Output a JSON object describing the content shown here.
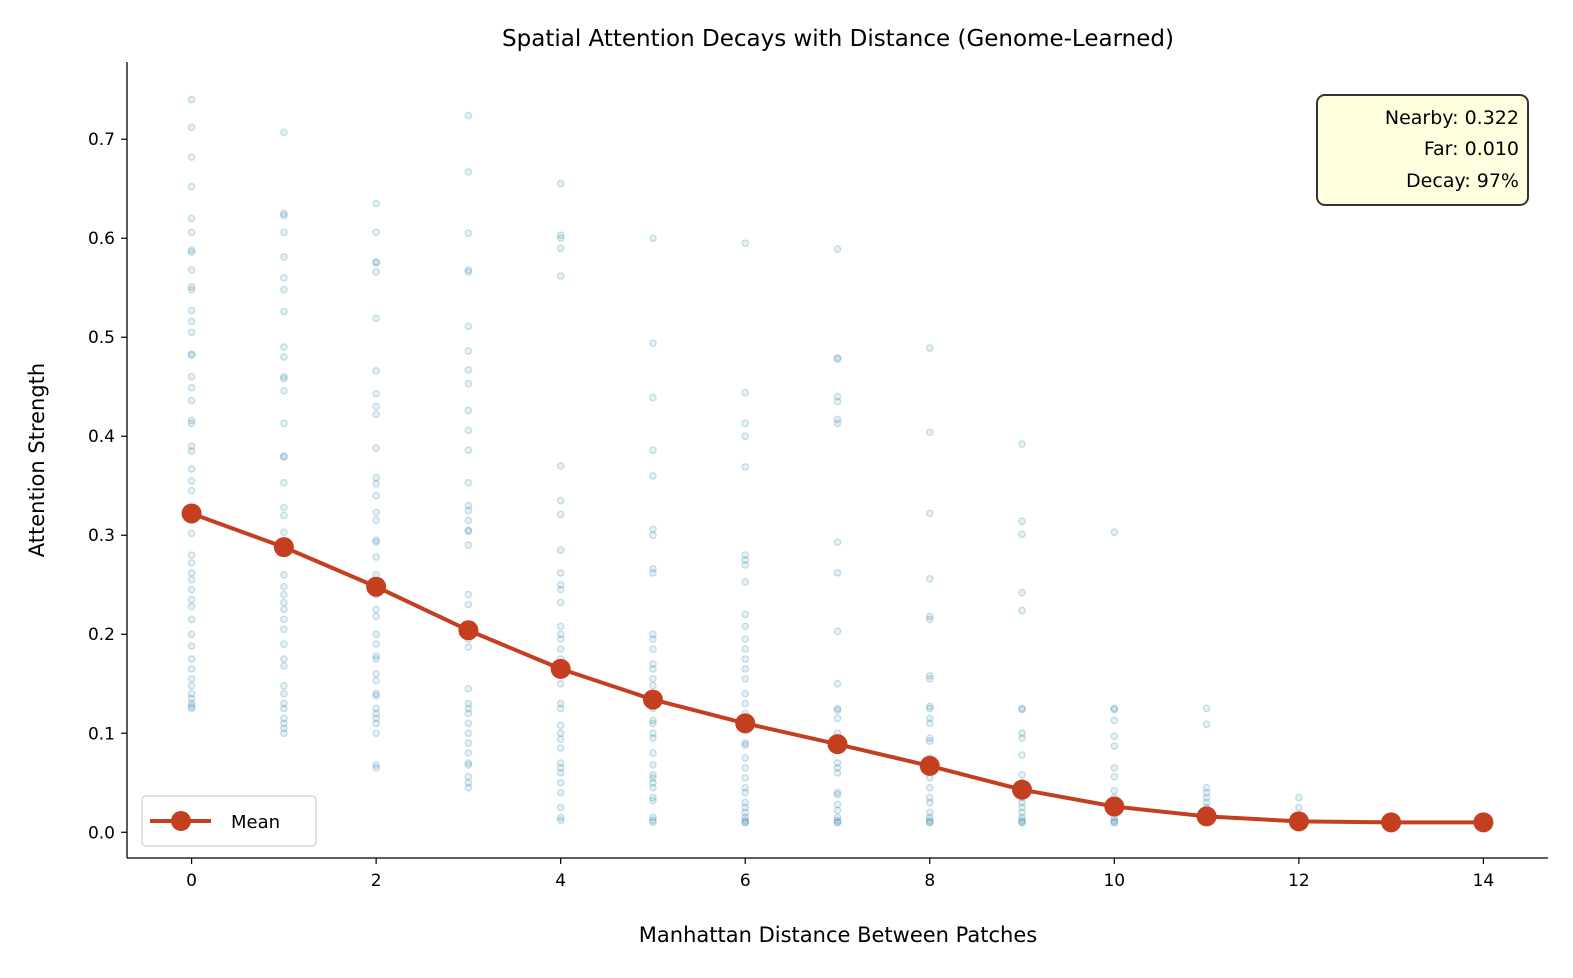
{
  "chart_data": {
    "type": "line",
    "title": "Spatial Attention Decays with Distance (Genome-Learned)",
    "xlabel": "Manhattan Distance Between Patches",
    "ylabel": "Attention Strength",
    "xlim": [
      -0.7,
      14.7
    ],
    "ylim": [
      -0.026,
      0.778
    ],
    "xticks": [
      0,
      2,
      4,
      6,
      8,
      10,
      12,
      14
    ],
    "yticks": [
      0.0,
      0.1,
      0.2,
      0.3,
      0.4,
      0.5,
      0.6,
      0.7
    ],
    "ytick_labels": [
      "0.0",
      "0.1",
      "0.2",
      "0.3",
      "0.4",
      "0.5",
      "0.6",
      "0.7"
    ],
    "grid": false,
    "legend_position": "lower-left",
    "colors": {
      "mean": "#c33f1f",
      "scatter": "#2e86ab",
      "annotation_fill": "#ffffe0"
    },
    "series": [
      {
        "name": "Mean",
        "x": [
          0,
          1,
          2,
          3,
          4,
          5,
          6,
          7,
          8,
          9,
          10,
          11,
          12,
          13,
          14
        ],
        "y": [
          0.322,
          0.288,
          0.248,
          0.204,
          0.165,
          0.134,
          0.11,
          0.089,
          0.067,
          0.043,
          0.026,
          0.016,
          0.011,
          0.01,
          0.01
        ]
      }
    ],
    "scatter_points": [
      {
        "x": 0,
        "y": [
          0.74,
          0.712,
          0.682,
          0.652,
          0.62,
          0.606,
          0.588,
          0.586,
          0.568,
          0.551,
          0.548,
          0.527,
          0.516,
          0.505,
          0.483,
          0.482,
          0.46,
          0.449,
          0.436,
          0.416,
          0.413,
          0.39,
          0.385,
          0.367,
          0.355,
          0.345,
          0.32,
          0.302,
          0.28,
          0.272,
          0.262,
          0.255,
          0.245,
          0.235,
          0.228,
          0.215,
          0.2,
          0.188,
          0.175,
          0.165,
          0.155,
          0.148,
          0.14,
          0.135,
          0.13,
          0.127,
          0.125
        ]
      },
      {
        "x": 1,
        "y": [
          0.707,
          0.625,
          0.623,
          0.606,
          0.581,
          0.56,
          0.548,
          0.526,
          0.49,
          0.48,
          0.46,
          0.458,
          0.446,
          0.413,
          0.38,
          0.379,
          0.353,
          0.328,
          0.32,
          0.303,
          0.29,
          0.26,
          0.248,
          0.24,
          0.232,
          0.225,
          0.215,
          0.205,
          0.19,
          0.175,
          0.168,
          0.148,
          0.14,
          0.13,
          0.125,
          0.115,
          0.11,
          0.105,
          0.1
        ]
      },
      {
        "x": 2,
        "y": [
          0.635,
          0.606,
          0.576,
          0.575,
          0.566,
          0.519,
          0.466,
          0.443,
          0.43,
          0.422,
          0.388,
          0.358,
          0.352,
          0.34,
          0.323,
          0.315,
          0.295,
          0.293,
          0.278,
          0.26,
          0.24,
          0.225,
          0.218,
          0.2,
          0.19,
          0.178,
          0.175,
          0.16,
          0.153,
          0.14,
          0.138,
          0.125,
          0.12,
          0.115,
          0.11,
          0.1,
          0.068,
          0.065
        ]
      },
      {
        "x": 3,
        "y": [
          0.724,
          0.667,
          0.605,
          0.568,
          0.566,
          0.511,
          0.486,
          0.467,
          0.453,
          0.426,
          0.406,
          0.386,
          0.353,
          0.33,
          0.325,
          0.315,
          0.305,
          0.304,
          0.29,
          0.24,
          0.23,
          0.21,
          0.195,
          0.187,
          0.145,
          0.13,
          0.125,
          0.12,
          0.11,
          0.1,
          0.09,
          0.08,
          0.07,
          0.068,
          0.056,
          0.05,
          0.045
        ]
      },
      {
        "x": 4,
        "y": [
          0.655,
          0.603,
          0.6,
          0.59,
          0.562,
          0.37,
          0.335,
          0.321,
          0.285,
          0.262,
          0.25,
          0.245,
          0.232,
          0.208,
          0.2,
          0.195,
          0.185,
          0.175,
          0.16,
          0.15,
          0.13,
          0.125,
          0.108,
          0.1,
          0.094,
          0.085,
          0.07,
          0.065,
          0.06,
          0.05,
          0.04,
          0.025,
          0.015,
          0.012
        ]
      },
      {
        "x": 5,
        "y": [
          0.6,
          0.494,
          0.439,
          0.386,
          0.36,
          0.306,
          0.3,
          0.266,
          0.262,
          0.2,
          0.195,
          0.185,
          0.17,
          0.165,
          0.155,
          0.148,
          0.135,
          0.125,
          0.113,
          0.11,
          0.1,
          0.095,
          0.08,
          0.068,
          0.058,
          0.055,
          0.05,
          0.045,
          0.035,
          0.032,
          0.015,
          0.012,
          0.01
        ]
      },
      {
        "x": 6,
        "y": [
          0.595,
          0.444,
          0.413,
          0.4,
          0.369,
          0.28,
          0.275,
          0.27,
          0.253,
          0.22,
          0.208,
          0.195,
          0.185,
          0.175,
          0.165,
          0.155,
          0.14,
          0.13,
          0.12,
          0.11,
          0.09,
          0.088,
          0.075,
          0.065,
          0.055,
          0.045,
          0.04,
          0.03,
          0.025,
          0.02,
          0.015,
          0.012,
          0.01,
          0.01
        ]
      },
      {
        "x": 7,
        "y": [
          0.589,
          0.479,
          0.478,
          0.44,
          0.435,
          0.417,
          0.413,
          0.293,
          0.262,
          0.203,
          0.15,
          0.125,
          0.123,
          0.115,
          0.1,
          0.09,
          0.07,
          0.065,
          0.06,
          0.04,
          0.038,
          0.028,
          0.022,
          0.015,
          0.012,
          0.01,
          0.01
        ]
      },
      {
        "x": 8,
        "y": [
          0.489,
          0.404,
          0.322,
          0.256,
          0.218,
          0.215,
          0.158,
          0.155,
          0.127,
          0.125,
          0.115,
          0.11,
          0.095,
          0.092,
          0.075,
          0.065,
          0.055,
          0.045,
          0.035,
          0.03,
          0.02,
          0.015,
          0.012,
          0.01,
          0.01
        ]
      },
      {
        "x": 9,
        "y": [
          0.392,
          0.314,
          0.301,
          0.242,
          0.224,
          0.125,
          0.124,
          0.1,
          0.095,
          0.078,
          0.058,
          0.05,
          0.045,
          0.04,
          0.035,
          0.03,
          0.025,
          0.02,
          0.015,
          0.012,
          0.01,
          0.01
        ]
      },
      {
        "x": 10,
        "y": [
          0.303,
          0.125,
          0.124,
          0.113,
          0.097,
          0.087,
          0.065,
          0.056,
          0.042,
          0.035,
          0.03,
          0.025,
          0.02,
          0.015,
          0.012,
          0.01,
          0.01
        ]
      },
      {
        "x": 11,
        "y": [
          0.125,
          0.109,
          0.045,
          0.04,
          0.035,
          0.03,
          0.025,
          0.02,
          0.015,
          0.012
        ]
      },
      {
        "x": 12,
        "y": [
          0.035,
          0.025,
          0.015,
          0.012,
          0.01
        ]
      },
      {
        "x": 13,
        "y": [
          0.012,
          0.01
        ]
      },
      {
        "x": 14,
        "y": [
          0.012,
          0.01
        ]
      }
    ],
    "legend": {
      "entries": [
        "Mean"
      ]
    },
    "annotation": {
      "lines": [
        "Nearby: 0.322",
        "Far: 0.010",
        "Decay: 97%"
      ]
    }
  }
}
